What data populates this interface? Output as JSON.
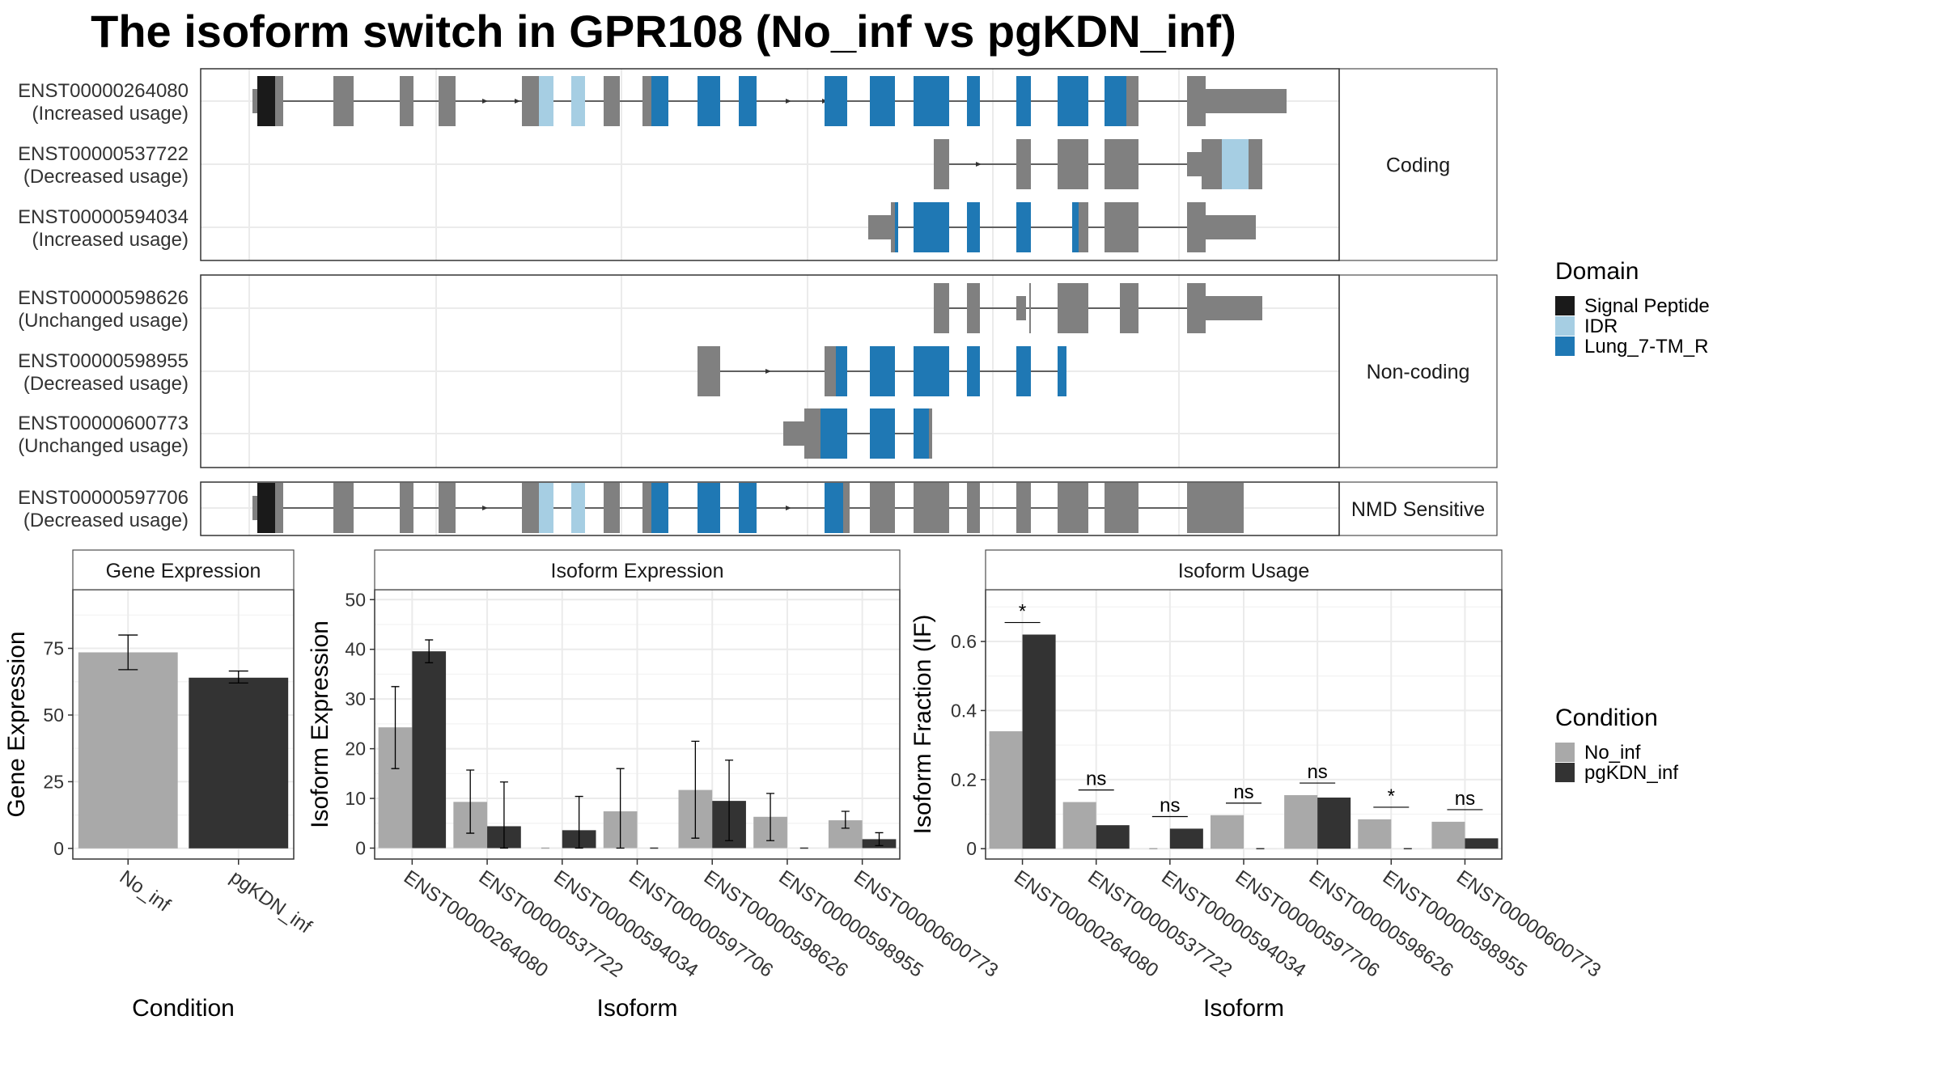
{
  "title": "The isoform switch in GPR108 (No_inf vs pgKDN_inf)",
  "colors": {
    "no_inf": "#a9a9a9",
    "pgkdn_inf": "#333333",
    "signal_peptide": "#1a1a1a",
    "idr": "#a6cee3",
    "lung_7tm_r": "#1f78b4",
    "exon": "#808080"
  },
  "structure": {
    "domain_legend": {
      "title": "Domain",
      "items": [
        {
          "name": "Signal Peptide",
          "color": "#1a1a1a"
        },
        {
          "name": "IDR",
          "color": "#a6cee3"
        },
        {
          "name": "Lung_7-TM_R",
          "color": "#1f78b4"
        }
      ]
    },
    "groups": [
      {
        "label": "Coding",
        "transcripts": [
          {
            "id": "ENST00000264080",
            "usage": "(Increased usage)"
          },
          {
            "id": "ENST00000537722",
            "usage": "(Decreased usage)"
          },
          {
            "id": "ENST00000594034",
            "usage": "(Increased usage)"
          }
        ]
      },
      {
        "label": "Non-coding",
        "transcripts": [
          {
            "id": "ENST00000598626",
            "usage": "(Unchanged usage)"
          },
          {
            "id": "ENST00000598955",
            "usage": "(Decreased usage)"
          },
          {
            "id": "ENST00000600773",
            "usage": "(Unchanged usage)"
          }
        ]
      },
      {
        "label": "NMD Sensitive",
        "transcripts": [
          {
            "id": "ENST00000597706",
            "usage": "(Decreased usage)"
          }
        ]
      }
    ]
  },
  "chart_data": [
    {
      "type": "bar",
      "strip": "Gene Expression",
      "xlabel": "Condition",
      "ylabel": "Gene Expression",
      "categories": [
        "No_inf",
        "pgKDN_inf"
      ],
      "values": [
        73.5,
        64
      ],
      "errors": [
        [
          67,
          80
        ],
        [
          62,
          66.5
        ]
      ],
      "yticks": [
        0,
        25,
        50,
        75
      ],
      "ylim": [
        -4,
        97
      ]
    },
    {
      "type": "bar",
      "strip": "Isoform Expression",
      "xlabel": "Isoform",
      "ylabel": "Isoform Expression",
      "categories": [
        "ENST00000264080",
        "ENST00000537722",
        "ENST00000594034",
        "ENST00000597706",
        "ENST00000598626",
        "ENST00000598955",
        "ENST00000600773"
      ],
      "series": [
        {
          "name": "No_inf",
          "values": [
            24.3,
            9.3,
            0,
            7.4,
            11.7,
            6.3,
            5.6
          ],
          "errors": [
            [
              16,
              32.5
            ],
            [
              3,
              15.7
            ],
            [
              0,
              0
            ],
            [
              0,
              16
            ],
            [
              2,
              21.5
            ],
            [
              1.5,
              11
            ],
            [
              4,
              7.4
            ]
          ]
        },
        {
          "name": "pgKDN_inf",
          "values": [
            39.6,
            4.4,
            3.6,
            0,
            9.5,
            0,
            1.8
          ],
          "errors": [
            [
              37.3,
              41.9
            ],
            [
              0,
              13.3
            ],
            [
              0,
              10.4
            ],
            [
              0,
              0
            ],
            [
              1.5,
              17.7
            ],
            [
              0,
              0
            ],
            [
              0.5,
              3.1
            ]
          ]
        }
      ],
      "yticks": [
        0,
        10,
        20,
        30,
        40,
        50
      ],
      "ylim": [
        -2.2,
        52
      ]
    },
    {
      "type": "bar",
      "strip": "Isoform Usage",
      "xlabel": "Isoform",
      "ylabel": "Isoform Fraction (IF)",
      "categories": [
        "ENST00000264080",
        "ENST00000537722",
        "ENST00000594034",
        "ENST00000597706",
        "ENST00000598626",
        "ENST00000598955",
        "ENST00000600773"
      ],
      "series": [
        {
          "name": "No_inf",
          "values": [
            0.34,
            0.135,
            0,
            0.097,
            0.155,
            0.085,
            0.078
          ]
        },
        {
          "name": "pgKDN_inf",
          "values": [
            0.62,
            0.068,
            0.058,
            0,
            0.148,
            0,
            0.03
          ]
        }
      ],
      "significance": [
        "*",
        "ns",
        "ns",
        "ns",
        "ns",
        "*",
        "ns"
      ],
      "yticks": [
        0.0,
        0.2,
        0.4,
        0.6
      ],
      "ylim": [
        -0.03,
        0.75
      ]
    }
  ],
  "condition_legend": {
    "title": "Condition",
    "items": [
      {
        "name": "No_inf",
        "color": "#a9a9a9"
      },
      {
        "name": "pgKDN_inf",
        "color": "#333333"
      }
    ]
  }
}
